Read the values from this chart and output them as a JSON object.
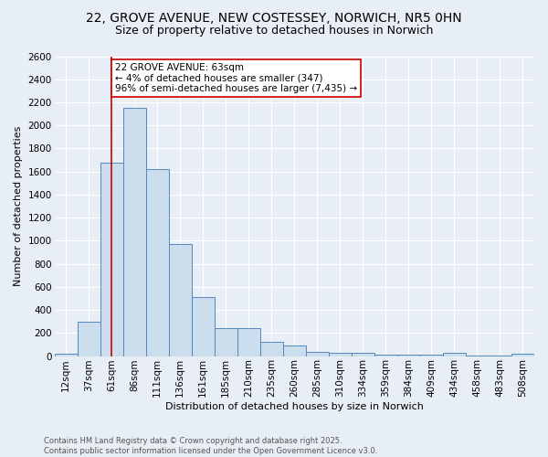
{
  "title1": "22, GROVE AVENUE, NEW COSTESSEY, NORWICH, NR5 0HN",
  "title2": "Size of property relative to detached houses in Norwich",
  "xlabel": "Distribution of detached houses by size in Norwich",
  "ylabel": "Number of detached properties",
  "bar_color": "#ccdded",
  "bar_edge_color": "#5588bb",
  "background_color": "#e8eef5",
  "grid_color": "#ffffff",
  "categories": [
    "12sqm",
    "37sqm",
    "61sqm",
    "86sqm",
    "111sqm",
    "136sqm",
    "161sqm",
    "185sqm",
    "210sqm",
    "235sqm",
    "260sqm",
    "285sqm",
    "310sqm",
    "334sqm",
    "359sqm",
    "384sqm",
    "409sqm",
    "434sqm",
    "458sqm",
    "483sqm",
    "508sqm"
  ],
  "values": [
    20,
    300,
    1680,
    2150,
    1620,
    975,
    510,
    245,
    245,
    120,
    95,
    35,
    25,
    30,
    15,
    15,
    15,
    25,
    5,
    5,
    20
  ],
  "vline_x": 2,
  "vline_color": "#cc0000",
  "annotation_text": "22 GROVE AVENUE: 63sqm\n← 4% of detached houses are smaller (347)\n96% of semi-detached houses are larger (7,435) →",
  "annotation_box_color": "#ffffff",
  "annotation_box_edge": "#cc0000",
  "footnote": "Contains HM Land Registry data © Crown copyright and database right 2025.\nContains public sector information licensed under the Open Government Licence v3.0.",
  "ylim": [
    0,
    2600
  ],
  "title_fontsize": 10,
  "subtitle_fontsize": 9,
  "axis_fontsize": 8,
  "tick_fontsize": 7.5,
  "annotation_fontsize": 7.5,
  "footnote_fontsize": 6,
  "yticks": [
    0,
    200,
    400,
    600,
    800,
    1000,
    1200,
    1400,
    1600,
    1800,
    2000,
    2200,
    2400,
    2600
  ]
}
